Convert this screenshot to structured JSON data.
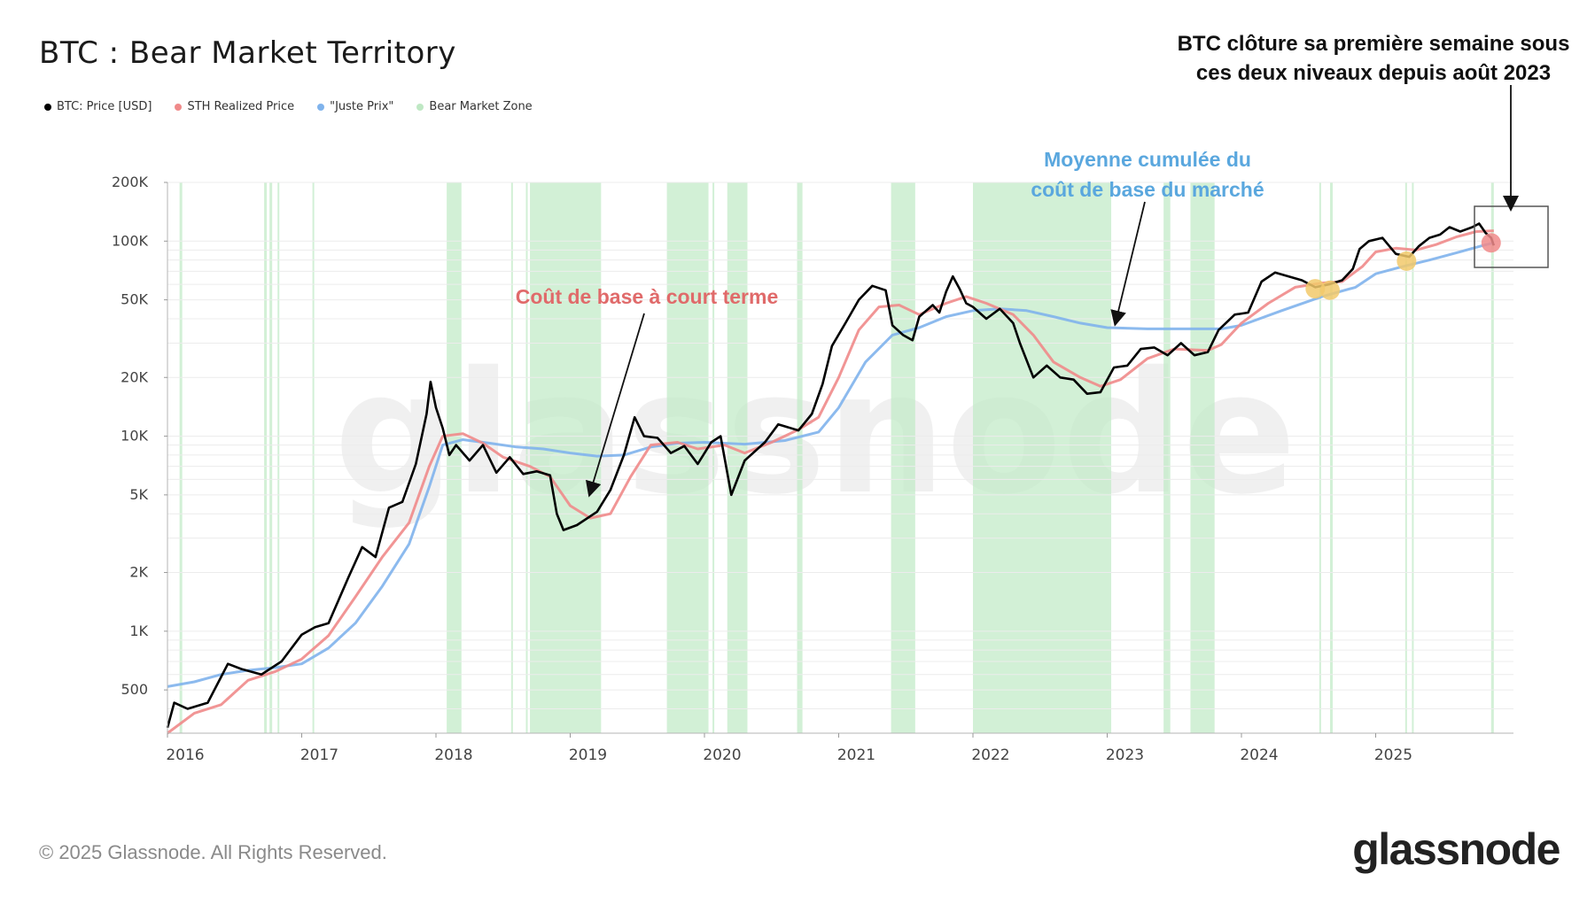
{
  "header": {
    "title": "BTC : Bear Market Territory"
  },
  "legend": [
    {
      "label": "BTC: Price [USD]",
      "color": "#000000"
    },
    {
      "label": "STH Realized Price",
      "color": "#f08a8a"
    },
    {
      "label": "\"Juste Prix\"",
      "color": "#7fb3ec"
    },
    {
      "label": "Bear Market Zone",
      "color": "#bfe8c4"
    }
  ],
  "annotations": {
    "top_note_line1": "BTC clôture sa première semaine sous",
    "top_note_line2": "ces deux niveaux depuis août 2023",
    "blue_line1": "Moyenne cumulée du",
    "blue_line2": "coût de base du marché",
    "red_label": "Coût de base à court terme"
  },
  "watermark": "glassnode",
  "footer": {
    "copyright": "© 2025 Glassnode. All Rights Reserved.",
    "logo": "glassnode"
  },
  "chart_data": {
    "type": "line",
    "title": "BTC : Bear Market Territory",
    "xlabel": "",
    "ylabel": "",
    "yscale": "log",
    "ylim": [
      300,
      200000
    ],
    "xlim": [
      2016.0,
      2026.0
    ],
    "x_ticks": [
      "2016",
      "2017",
      "2018",
      "2019",
      "2020",
      "2021",
      "2022",
      "2023",
      "2024",
      "2025"
    ],
    "y_ticks": [
      {
        "value": 500,
        "label": "500"
      },
      {
        "value": 1000,
        "label": "1K"
      },
      {
        "value": 2000,
        "label": "2K"
      },
      {
        "value": 5000,
        "label": "5K"
      },
      {
        "value": 10000,
        "label": "10K"
      },
      {
        "value": 20000,
        "label": "20K"
      },
      {
        "value": 50000,
        "label": "50K"
      },
      {
        "value": 100000,
        "label": "100K"
      },
      {
        "value": 200000,
        "label": "200K"
      }
    ],
    "series": [
      {
        "name": "BTC: Price [USD]",
        "color": "#000000",
        "points": [
          [
            2016.0,
            320
          ],
          [
            2016.05,
            430
          ],
          [
            2016.15,
            400
          ],
          [
            2016.3,
            430
          ],
          [
            2016.45,
            680
          ],
          [
            2016.55,
            640
          ],
          [
            2016.7,
            600
          ],
          [
            2016.85,
            700
          ],
          [
            2017.0,
            960
          ],
          [
            2017.1,
            1050
          ],
          [
            2017.2,
            1100
          ],
          [
            2017.35,
            1900
          ],
          [
            2017.45,
            2700
          ],
          [
            2017.55,
            2400
          ],
          [
            2017.65,
            4300
          ],
          [
            2017.75,
            4600
          ],
          [
            2017.85,
            7200
          ],
          [
            2017.93,
            13000
          ],
          [
            2017.96,
            19000
          ],
          [
            2018.0,
            14000
          ],
          [
            2018.05,
            11000
          ],
          [
            2018.1,
            8000
          ],
          [
            2018.15,
            9000
          ],
          [
            2018.25,
            7500
          ],
          [
            2018.35,
            9000
          ],
          [
            2018.45,
            6500
          ],
          [
            2018.55,
            7800
          ],
          [
            2018.65,
            6400
          ],
          [
            2018.75,
            6600
          ],
          [
            2018.85,
            6300
          ],
          [
            2018.9,
            4000
          ],
          [
            2018.95,
            3300
          ],
          [
            2019.05,
            3500
          ],
          [
            2019.2,
            4100
          ],
          [
            2019.3,
            5300
          ],
          [
            2019.4,
            8000
          ],
          [
            2019.48,
            12500
          ],
          [
            2019.55,
            10000
          ],
          [
            2019.65,
            9800
          ],
          [
            2019.75,
            8200
          ],
          [
            2019.85,
            8900
          ],
          [
            2019.95,
            7200
          ],
          [
            2020.05,
            9300
          ],
          [
            2020.12,
            10000
          ],
          [
            2020.2,
            5000
          ],
          [
            2020.3,
            7500
          ],
          [
            2020.45,
            9300
          ],
          [
            2020.55,
            11500
          ],
          [
            2020.7,
            10700
          ],
          [
            2020.8,
            13000
          ],
          [
            2020.88,
            18500
          ],
          [
            2020.95,
            29000
          ],
          [
            2021.05,
            38000
          ],
          [
            2021.15,
            50000
          ],
          [
            2021.25,
            59000
          ],
          [
            2021.35,
            56000
          ],
          [
            2021.4,
            37000
          ],
          [
            2021.48,
            33000
          ],
          [
            2021.55,
            31000
          ],
          [
            2021.6,
            41000
          ],
          [
            2021.7,
            47000
          ],
          [
            2021.75,
            43000
          ],
          [
            2021.8,
            55000
          ],
          [
            2021.85,
            66000
          ],
          [
            2021.9,
            57000
          ],
          [
            2021.95,
            48000
          ],
          [
            2022.0,
            46000
          ],
          [
            2022.1,
            40000
          ],
          [
            2022.2,
            45000
          ],
          [
            2022.3,
            38000
          ],
          [
            2022.35,
            30000
          ],
          [
            2022.45,
            20000
          ],
          [
            2022.55,
            23000
          ],
          [
            2022.65,
            20000
          ],
          [
            2022.75,
            19500
          ],
          [
            2022.85,
            16500
          ],
          [
            2022.95,
            16800
          ],
          [
            2023.05,
            22500
          ],
          [
            2023.15,
            23000
          ],
          [
            2023.25,
            28000
          ],
          [
            2023.35,
            28500
          ],
          [
            2023.45,
            26000
          ],
          [
            2023.55,
            30000
          ],
          [
            2023.65,
            26000
          ],
          [
            2023.75,
            27000
          ],
          [
            2023.83,
            35000
          ],
          [
            2023.95,
            42000
          ],
          [
            2024.05,
            43000
          ],
          [
            2024.15,
            62000
          ],
          [
            2024.25,
            69000
          ],
          [
            2024.35,
            66000
          ],
          [
            2024.45,
            63000
          ],
          [
            2024.55,
            58000
          ],
          [
            2024.65,
            60000
          ],
          [
            2024.75,
            63000
          ],
          [
            2024.83,
            72000
          ],
          [
            2024.88,
            91000
          ],
          [
            2024.95,
            100000
          ],
          [
            2025.05,
            104000
          ],
          [
            2025.15,
            86000
          ],
          [
            2025.25,
            83000
          ],
          [
            2025.32,
            94000
          ],
          [
            2025.4,
            104000
          ],
          [
            2025.48,
            108000
          ],
          [
            2025.55,
            118000
          ],
          [
            2025.63,
            112000
          ],
          [
            2025.72,
            118000
          ],
          [
            2025.77,
            123000
          ],
          [
            2025.82,
            110000
          ],
          [
            2025.86,
            104000
          ],
          [
            2025.88,
            95000
          ]
        ]
      },
      {
        "name": "STH Realized Price",
        "color": "#f08a8a",
        "points": [
          [
            2016.0,
            300
          ],
          [
            2016.2,
            380
          ],
          [
            2016.4,
            420
          ],
          [
            2016.6,
            560
          ],
          [
            2016.8,
            620
          ],
          [
            2017.0,
            720
          ],
          [
            2017.2,
            950
          ],
          [
            2017.4,
            1500
          ],
          [
            2017.6,
            2400
          ],
          [
            2017.8,
            3600
          ],
          [
            2017.95,
            7000
          ],
          [
            2018.05,
            10000
          ],
          [
            2018.2,
            10300
          ],
          [
            2018.35,
            9200
          ],
          [
            2018.5,
            7800
          ],
          [
            2018.7,
            7000
          ],
          [
            2018.85,
            6200
          ],
          [
            2019.0,
            4400
          ],
          [
            2019.15,
            3800
          ],
          [
            2019.3,
            4000
          ],
          [
            2019.45,
            6200
          ],
          [
            2019.6,
            9000
          ],
          [
            2019.8,
            9300
          ],
          [
            2019.95,
            8600
          ],
          [
            2020.15,
            9000
          ],
          [
            2020.3,
            8200
          ],
          [
            2020.5,
            9300
          ],
          [
            2020.7,
            10800
          ],
          [
            2020.85,
            12500
          ],
          [
            2021.0,
            20000
          ],
          [
            2021.15,
            35000
          ],
          [
            2021.3,
            46000
          ],
          [
            2021.45,
            47000
          ],
          [
            2021.6,
            42000
          ],
          [
            2021.8,
            48000
          ],
          [
            2021.95,
            52000
          ],
          [
            2022.1,
            48000
          ],
          [
            2022.3,
            42000
          ],
          [
            2022.45,
            33000
          ],
          [
            2022.6,
            24000
          ],
          [
            2022.8,
            20000
          ],
          [
            2022.95,
            18000
          ],
          [
            2023.1,
            19500
          ],
          [
            2023.3,
            25000
          ],
          [
            2023.5,
            28000
          ],
          [
            2023.75,
            27500
          ],
          [
            2023.85,
            29500
          ],
          [
            2024.0,
            38000
          ],
          [
            2024.2,
            48000
          ],
          [
            2024.4,
            58000
          ],
          [
            2024.6,
            61000
          ],
          [
            2024.75,
            62000
          ],
          [
            2024.9,
            74000
          ],
          [
            2025.0,
            88000
          ],
          [
            2025.15,
            92000
          ],
          [
            2025.3,
            90000
          ],
          [
            2025.45,
            96000
          ],
          [
            2025.6,
            105000
          ],
          [
            2025.75,
            112000
          ],
          [
            2025.88,
            113000
          ]
        ]
      },
      {
        "name": "\"Juste Prix\"",
        "color": "#7fb3ec",
        "points": [
          [
            2016.0,
            520
          ],
          [
            2016.2,
            550
          ],
          [
            2016.4,
            600
          ],
          [
            2016.6,
            630
          ],
          [
            2016.8,
            650
          ],
          [
            2017.0,
            680
          ],
          [
            2017.2,
            820
          ],
          [
            2017.4,
            1100
          ],
          [
            2017.6,
            1700
          ],
          [
            2017.8,
            2800
          ],
          [
            2017.95,
            5500
          ],
          [
            2018.05,
            9000
          ],
          [
            2018.2,
            9600
          ],
          [
            2018.4,
            9200
          ],
          [
            2018.6,
            8800
          ],
          [
            2018.8,
            8600
          ],
          [
            2019.0,
            8200
          ],
          [
            2019.2,
            7900
          ],
          [
            2019.4,
            8000
          ],
          [
            2019.6,
            8800
          ],
          [
            2019.8,
            9200
          ],
          [
            2020.0,
            9300
          ],
          [
            2020.3,
            9100
          ],
          [
            2020.6,
            9500
          ],
          [
            2020.85,
            10500
          ],
          [
            2021.0,
            14000
          ],
          [
            2021.2,
            24000
          ],
          [
            2021.4,
            33000
          ],
          [
            2021.6,
            36000
          ],
          [
            2021.8,
            41000
          ],
          [
            2022.0,
            44000
          ],
          [
            2022.2,
            45000
          ],
          [
            2022.4,
            44000
          ],
          [
            2022.6,
            41000
          ],
          [
            2022.8,
            38000
          ],
          [
            2023.0,
            36000
          ],
          [
            2023.3,
            35500
          ],
          [
            2023.6,
            35500
          ],
          [
            2023.85,
            35500
          ],
          [
            2024.0,
            37000
          ],
          [
            2024.3,
            44000
          ],
          [
            2024.6,
            52000
          ],
          [
            2024.85,
            58000
          ],
          [
            2025.0,
            68000
          ],
          [
            2025.2,
            74000
          ],
          [
            2025.4,
            80000
          ],
          [
            2025.6,
            87000
          ],
          [
            2025.8,
            95000
          ],
          [
            2025.88,
            98000
          ]
        ]
      }
    ],
    "bear_market_zones": [
      [
        2016.09,
        2016.11
      ],
      [
        2016.72,
        2016.74
      ],
      [
        2016.76,
        2016.78
      ],
      [
        2016.82,
        2016.83
      ],
      [
        2017.08,
        2017.09
      ],
      [
        2018.08,
        2018.19
      ],
      [
        2018.56,
        2018.57
      ],
      [
        2018.67,
        2018.68
      ],
      [
        2018.7,
        2019.23
      ],
      [
        2019.72,
        2020.03
      ],
      [
        2020.06,
        2020.07
      ],
      [
        2020.17,
        2020.32
      ],
      [
        2020.69,
        2020.73
      ],
      [
        2021.39,
        2021.57
      ],
      [
        2022.0,
        2023.03
      ],
      [
        2023.42,
        2023.47
      ],
      [
        2023.62,
        2023.8
      ],
      [
        2024.58,
        2024.59
      ],
      [
        2024.66,
        2024.68
      ],
      [
        2025.22,
        2025.23
      ],
      [
        2025.27,
        2025.28
      ],
      [
        2025.86,
        2025.88
      ]
    ],
    "markers": [
      {
        "x": 2024.55,
        "y": 57000,
        "color": "#f2c96b"
      },
      {
        "x": 2024.66,
        "y": 56000,
        "color": "#f2c96b"
      },
      {
        "x": 2025.23,
        "y": 79000,
        "color": "#f2c96b"
      },
      {
        "x": 2025.86,
        "y": 98000,
        "color": "#f08a8a"
      }
    ]
  }
}
